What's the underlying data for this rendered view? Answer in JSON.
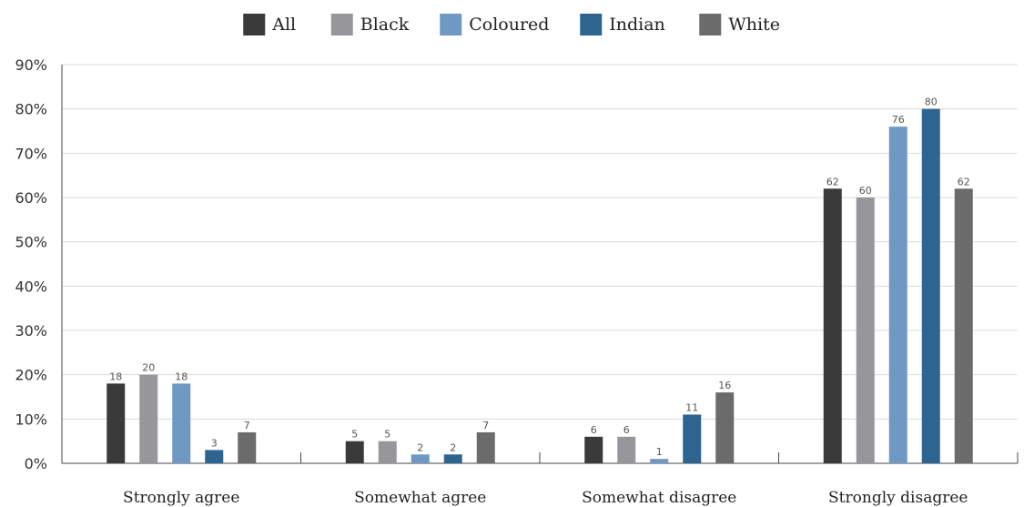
{
  "chart_data": {
    "type": "bar",
    "categories": [
      "Strongly agree",
      "Somewhat agree",
      "Somewhat disagree",
      "Strongly disagree"
    ],
    "series": [
      {
        "name": "All",
        "color": "#3a3a3a",
        "values": [
          18,
          5,
          6,
          62
        ]
      },
      {
        "name": "Black",
        "color": "#97979b",
        "values": [
          20,
          5,
          6,
          60
        ]
      },
      {
        "name": "Coloured",
        "color": "#6f98c2",
        "values": [
          18,
          2,
          1,
          76
        ]
      },
      {
        "name": "Indian",
        "color": "#2e6590",
        "values": [
          3,
          2,
          11,
          80
        ]
      },
      {
        "name": "White",
        "color": "#6b6b6b",
        "values": [
          7,
          7,
          16,
          62
        ]
      }
    ],
    "yticks": [
      "0%",
      "10%",
      "20%",
      "30%",
      "40%",
      "50%",
      "60%",
      "70%",
      "80%",
      "90%"
    ],
    "ylim": [
      0,
      90
    ],
    "grid": true,
    "legend_position": "top"
  }
}
